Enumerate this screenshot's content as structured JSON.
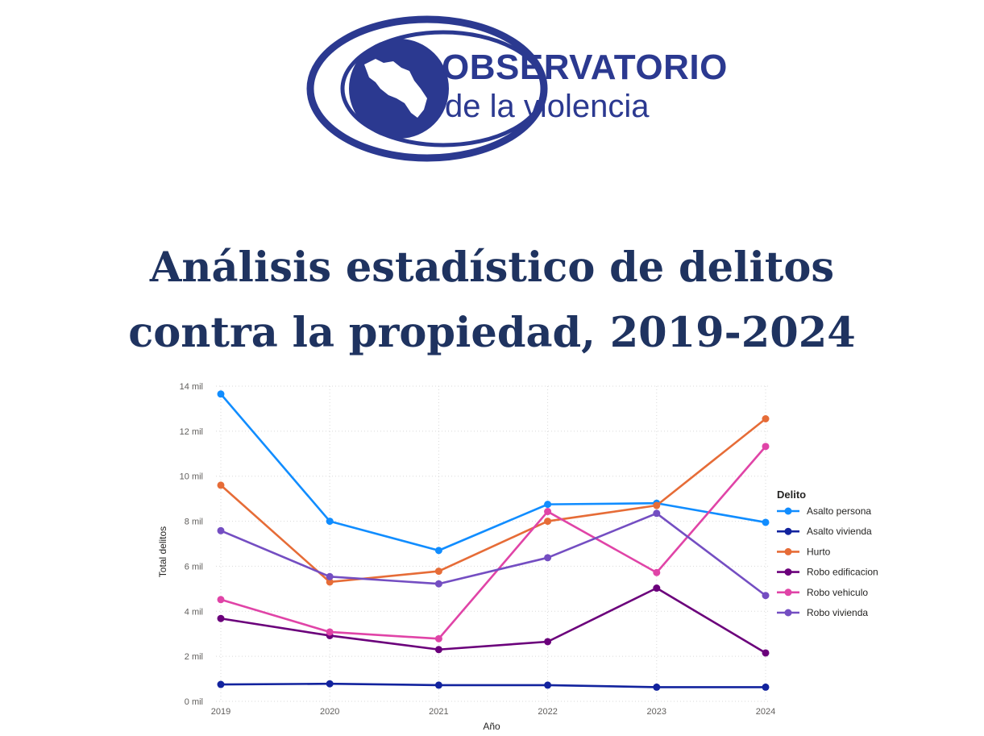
{
  "logo": {
    "line1": "OBSERVATORIO",
    "line2": "de la violencia",
    "color": "#2b3990"
  },
  "heading": {
    "line1": "Análisis estadístico de delitos",
    "line2": "contra la propiedad, 2019-2024"
  },
  "chart_data": {
    "type": "line",
    "xlabel": "Año",
    "ylabel": "Total delitos",
    "categories": [
      "2019",
      "2020",
      "2021",
      "2022",
      "2023",
      "2024"
    ],
    "ylim": [
      0,
      14000
    ],
    "yticks": [
      {
        "value": 0,
        "label": "0 mil"
      },
      {
        "value": 2000,
        "label": "2 mil"
      },
      {
        "value": 4000,
        "label": "4 mil"
      },
      {
        "value": 6000,
        "label": "6 mil"
      },
      {
        "value": 8000,
        "label": "8 mil"
      },
      {
        "value": 10000,
        "label": "10 mil"
      },
      {
        "value": 12000,
        "label": "12 mil"
      },
      {
        "value": 14000,
        "label": "14 mil"
      }
    ],
    "grid": true,
    "legend": {
      "title": "Delito",
      "position": "right"
    },
    "series": [
      {
        "name": "Asalto persona",
        "color": "#118dff",
        "values": [
          13650,
          8000,
          6700,
          8750,
          8800,
          7950
        ]
      },
      {
        "name": "Asalto vivienda",
        "color": "#12239e",
        "values": [
          750,
          780,
          720,
          720,
          630,
          630
        ]
      },
      {
        "name": "Hurto",
        "color": "#e66c37",
        "values": [
          9600,
          5300,
          5780,
          8000,
          8700,
          12550
        ]
      },
      {
        "name": "Robo edificacion",
        "color": "#6b007b",
        "values": [
          3680,
          2920,
          2300,
          2650,
          5030,
          2150
        ]
      },
      {
        "name": "Robo vehiculo",
        "color": "#e044a7",
        "values": [
          4520,
          3080,
          2780,
          8430,
          5720,
          11320
        ]
      },
      {
        "name": "Robo vivienda",
        "color": "#744ec2",
        "values": [
          7580,
          5540,
          5220,
          6380,
          8350,
          4700
        ]
      }
    ]
  }
}
